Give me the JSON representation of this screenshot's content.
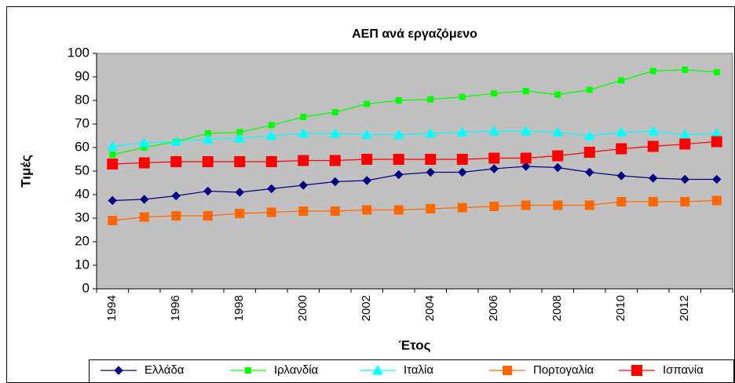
{
  "chart_data": {
    "type": "line",
    "title": "ΑΕΠ ανά εργαζόμενο",
    "x_label": "Έτος",
    "y_label": "Τιμές",
    "categories": [
      "1994",
      null,
      "1996",
      null,
      "1998",
      null,
      "2000",
      null,
      "2002",
      null,
      "2004",
      null,
      "2006",
      null,
      "2008",
      null,
      "2010",
      null,
      "2012",
      null
    ],
    "ylim": [
      0,
      100
    ],
    "yticks": [
      0,
      10,
      20,
      30,
      40,
      50,
      60,
      70,
      80,
      90,
      100
    ],
    "grid": false,
    "legend": "bottom",
    "series": [
      {
        "name": "Ελλάδα",
        "color": "#000080",
        "marker": "diamond",
        "values": [
          37.5,
          38,
          39.5,
          41.5,
          41,
          42.5,
          44,
          45.5,
          46,
          48.5,
          49.5,
          49.5,
          51,
          52,
          51.5,
          49.5,
          48,
          47,
          46.5,
          46.5
        ]
      },
      {
        "name": "Ιρλανδία",
        "color": "#00ff00",
        "marker": "square",
        "values": [
          57,
          60,
          62.5,
          66,
          66.5,
          69.5,
          73,
          75,
          78.5,
          80,
          80.5,
          81.5,
          83,
          84,
          82.5,
          84.5,
          88.5,
          92.5,
          93,
          92
        ]
      },
      {
        "name": "Ιταλία",
        "color": "#00ffff",
        "marker": "triangle",
        "values": [
          60.5,
          62,
          62.5,
          63.5,
          64,
          65,
          66,
          66,
          65.5,
          65.5,
          66,
          66.5,
          67,
          67,
          66.5,
          65,
          66.5,
          67,
          65.5,
          66
        ]
      },
      {
        "name": "Πορτογαλία",
        "color": "#ff6600",
        "marker": "square",
        "values": [
          29,
          30.5,
          31,
          31,
          32,
          32.5,
          33,
          33,
          33.5,
          33.5,
          34,
          34.5,
          35,
          35.5,
          35.5,
          35.5,
          37,
          37,
          37,
          37.5
        ]
      },
      {
        "name": "Ισπανία",
        "color": "#ff0000",
        "marker": "square",
        "values": [
          53,
          53.5,
          54,
          54,
          54,
          54,
          54.5,
          54.5,
          55,
          55,
          55,
          55,
          55.5,
          55.5,
          56.5,
          58,
          59.5,
          60.5,
          61.5,
          62.5
        ]
      }
    ]
  }
}
